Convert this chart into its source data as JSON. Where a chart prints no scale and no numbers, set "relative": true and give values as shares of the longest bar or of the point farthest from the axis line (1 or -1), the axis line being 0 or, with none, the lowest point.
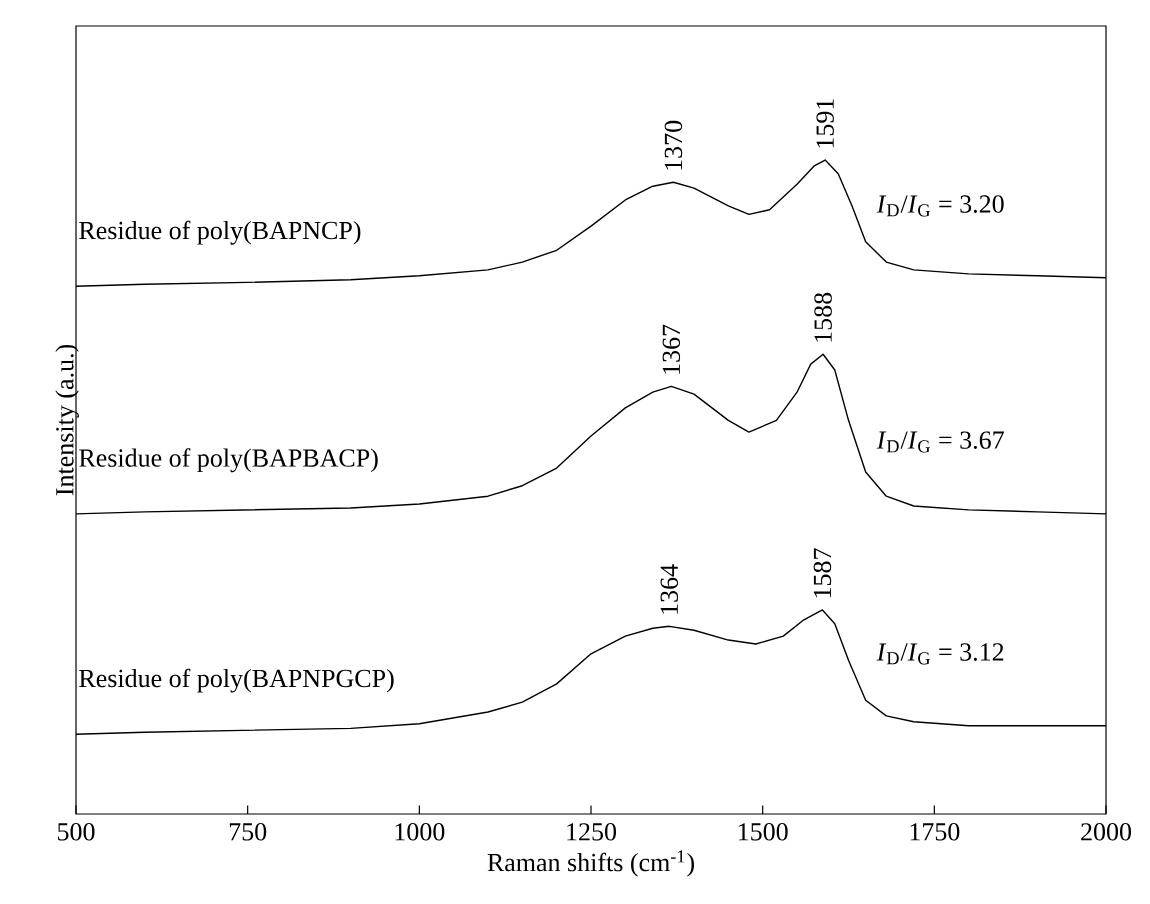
{
  "chart_data": {
    "type": "line",
    "relative": true,
    "xlabel": "Raman shifts (cm$^{-1}$)",
    "ylabel": "Intensity (a.u.)",
    "xlim": [
      500,
      2000
    ],
    "xticks": [
      500,
      750,
      1000,
      1250,
      1500,
      1750,
      2000
    ],
    "grid": false,
    "legend": false,
    "marker": "none",
    "line_style": "solid",
    "series": [
      {
        "name": "Residue of poly(BAPNCP)",
        "color": "#000000",
        "x": [
          500,
          600,
          750,
          900,
          1000,
          1100,
          1150,
          1200,
          1250,
          1300,
          1340,
          1370,
          1400,
          1450,
          1480,
          1510,
          1550,
          1575,
          1591,
          1610,
          1630,
          1650,
          1680,
          1720,
          1800,
          1900,
          2000
        ],
        "values": [
          0.807,
          0.81,
          0.813,
          0.817,
          0.823,
          0.832,
          0.844,
          0.862,
          0.899,
          0.939,
          0.96,
          0.966,
          0.957,
          0.93,
          0.917,
          0.924,
          0.963,
          0.991,
          1.0,
          0.979,
          0.93,
          0.875,
          0.844,
          0.832,
          0.826,
          0.823,
          0.82
        ]
      },
      {
        "name": "Residue of poly(BAPBACP)",
        "color": "#000000",
        "x": [
          500,
          600,
          750,
          900,
          1000,
          1100,
          1150,
          1200,
          1250,
          1300,
          1340,
          1367,
          1400,
          1450,
          1480,
          1520,
          1550,
          1570,
          1588,
          1605,
          1625,
          1650,
          1680,
          1720,
          1800,
          1900,
          2000
        ],
        "values": [
          0.459,
          0.462,
          0.465,
          0.468,
          0.474,
          0.486,
          0.502,
          0.529,
          0.578,
          0.621,
          0.645,
          0.654,
          0.642,
          0.602,
          0.584,
          0.602,
          0.645,
          0.688,
          0.703,
          0.679,
          0.602,
          0.523,
          0.486,
          0.471,
          0.465,
          0.462,
          0.459
        ]
      },
      {
        "name": "Residue of poly(BAPNPGCP)",
        "color": "#000000",
        "x": [
          500,
          600,
          750,
          900,
          1000,
          1100,
          1150,
          1200,
          1250,
          1300,
          1340,
          1364,
          1400,
          1450,
          1490,
          1530,
          1560,
          1587,
          1605,
          1625,
          1650,
          1680,
          1720,
          1800,
          1900,
          2000
        ],
        "values": [
          0.122,
          0.125,
          0.128,
          0.131,
          0.138,
          0.156,
          0.171,
          0.199,
          0.245,
          0.272,
          0.284,
          0.287,
          0.281,
          0.266,
          0.26,
          0.272,
          0.297,
          0.312,
          0.291,
          0.235,
          0.174,
          0.15,
          0.141,
          0.135,
          0.135,
          0.135
        ]
      }
    ],
    "annotations": [
      {
        "text": "1370",
        "x": 1370,
        "y": 0.966
      },
      {
        "text": "1591",
        "x": 1591,
        "y": 1.0
      },
      {
        "text": "1367",
        "x": 1367,
        "y": 0.654
      },
      {
        "text": "1588",
        "x": 1588,
        "y": 0.703
      },
      {
        "text": "1364",
        "x": 1364,
        "y": 0.287
      },
      {
        "text": "1587",
        "x": 1587,
        "y": 0.312
      },
      "*I*$_{D}$/*I*$_{G}$ = 3.20",
      "*I*$_{D}$/*I*$_{G}$ = 3.67",
      "*I*$_{D}$/*I*$_{G}$ = 3.12"
    ]
  }
}
